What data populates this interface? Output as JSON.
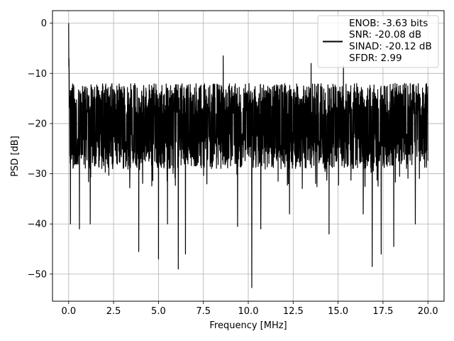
{
  "chart_data": {
    "type": "line",
    "title": "",
    "xlabel": "Frequency [MHz]",
    "ylabel": "PSD [dB]",
    "xlim": [
      -0.9,
      20.9
    ],
    "ylim": [
      -55.4,
      2.5
    ],
    "xticks": [
      0.0,
      2.5,
      5.0,
      7.5,
      10.0,
      12.5,
      15.0,
      17.5,
      20.0
    ],
    "xtick_labels": [
      "0.0",
      "2.5",
      "5.0",
      "7.5",
      "10.0",
      "12.5",
      "15.0",
      "17.5",
      "20.0"
    ],
    "yticks": [
      0,
      -10,
      -20,
      -30,
      -40,
      -50
    ],
    "ytick_labels": [
      "0",
      "−10",
      "−20",
      "−30",
      "−40",
      "−50"
    ],
    "grid": true,
    "legend_position": "top-right",
    "legend_entries": [
      "ENOB: -3.63 bits",
      "SNR: -20.08 dB",
      "SINAD: -20.12 dB",
      "SFDR: 2.99"
    ],
    "series": [
      {
        "color": "#000000",
        "x_range": [
          0.0,
          20.0
        ],
        "baseline_db": -20,
        "upper_envelope_db": -12,
        "lower_envelope_db": -29,
        "peak": {
          "x": 0.0,
          "y": 0
        },
        "notable_dips": [
          {
            "x": 0.1,
            "y": -40
          },
          {
            "x": 0.6,
            "y": -41
          },
          {
            "x": 1.2,
            "y": -40
          },
          {
            "x": 3.9,
            "y": -45.5
          },
          {
            "x": 5.0,
            "y": -47
          },
          {
            "x": 5.5,
            "y": -40
          },
          {
            "x": 6.1,
            "y": -49
          },
          {
            "x": 6.5,
            "y": -46
          },
          {
            "x": 9.4,
            "y": -40.5
          },
          {
            "x": 10.2,
            "y": -52.7
          },
          {
            "x": 10.7,
            "y": -41
          },
          {
            "x": 12.3,
            "y": -38
          },
          {
            "x": 14.5,
            "y": -42
          },
          {
            "x": 16.4,
            "y": -38
          },
          {
            "x": 16.9,
            "y": -48.5
          },
          {
            "x": 17.4,
            "y": -46
          },
          {
            "x": 18.1,
            "y": -44.5
          },
          {
            "x": 19.3,
            "y": -40
          }
        ],
        "notable_peaks": [
          {
            "x": 0.05,
            "y": -3
          },
          {
            "x": 8.6,
            "y": -6.5
          },
          {
            "x": 13.5,
            "y": -8
          },
          {
            "x": 15.3,
            "y": -8.5
          }
        ]
      }
    ]
  }
}
